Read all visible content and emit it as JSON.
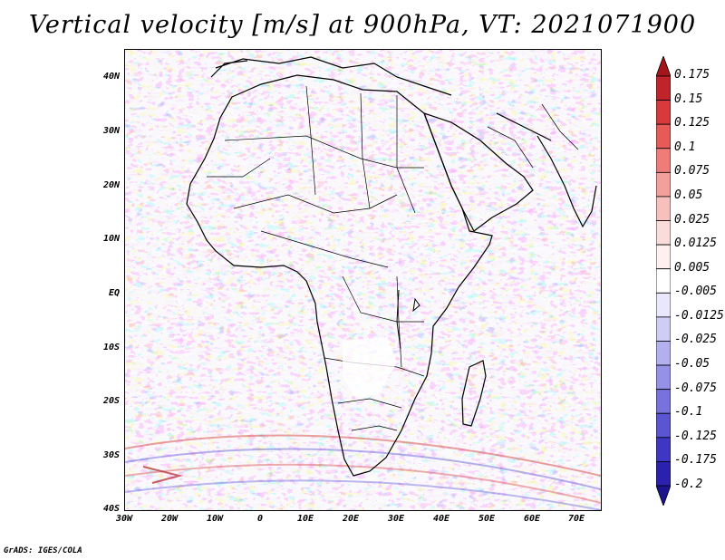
{
  "title": "Vertical velocity [m/s] at 900hPa, VT: 2021071900",
  "map": {
    "lat_ticks": [
      "40N",
      "30N",
      "20N",
      "10N",
      "EQ",
      "10S",
      "20S",
      "30S",
      "40S"
    ],
    "lon_ticks": [
      "30W",
      "20W",
      "10W",
      "0",
      "10E",
      "20E",
      "30E",
      "40E",
      "50E",
      "60E",
      "70E"
    ],
    "lon_range": [
      -30,
      75
    ],
    "lat_range": [
      -40,
      45
    ],
    "colors": {
      "positive": "#e8524e",
      "negative": "#5a55d8",
      "background": "#f6f4fb"
    }
  },
  "colorbar": {
    "labels": [
      "0.175",
      "0.15",
      "0.125",
      "0.1",
      "0.075",
      "0.05",
      "0.025",
      "0.0125",
      "0.005",
      "-0.005",
      "-0.0125",
      "-0.025",
      "-0.05",
      "-0.075",
      "-0.1",
      "-0.125",
      "-0.175",
      "-0.2"
    ],
    "colors": [
      "#a4161a",
      "#c0232a",
      "#d83a3c",
      "#e65a58",
      "#ee7d7a",
      "#f3a09d",
      "#f7c0bd",
      "#fadcda",
      "#fdf0ef",
      "#ffffff",
      "#e8e7fb",
      "#cfcdf6",
      "#b3b0ef",
      "#9591e6",
      "#7772dc",
      "#5a55d1",
      "#3d37c4",
      "#2a22ae",
      "#1c148e"
    ]
  },
  "credit": "GrADS: IGES/COLA"
}
